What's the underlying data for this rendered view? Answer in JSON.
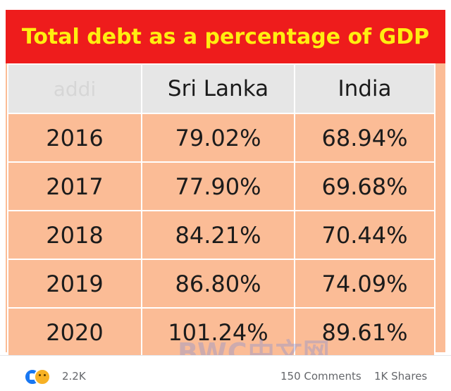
{
  "table": {
    "title": "Total debt as a percentage of GDP",
    "header": {
      "corner": "addi",
      "col1": "Sri Lanka",
      "col2": "India"
    },
    "rows": [
      {
        "year": "2016",
        "sri_lanka": "79.02%",
        "india": "68.94%"
      },
      {
        "year": "2017",
        "sri_lanka": "77.90%",
        "india": "69.68%"
      },
      {
        "year": "2018",
        "sri_lanka": "84.21%",
        "india": "70.44%"
      },
      {
        "year": "2019",
        "sri_lanka": "86.80%",
        "india": "74.09%"
      },
      {
        "year": "2020",
        "sri_lanka": "101.24%",
        "india": "89.61%"
      }
    ]
  },
  "watermark": "BWC中文网",
  "footer": {
    "reaction_count": "2.2K",
    "reaction_icons": [
      "like-icon",
      "sad-icon"
    ],
    "comments": "150 Comments",
    "shares": "1K Shares"
  },
  "colors": {
    "title_bg": "#ee1c1c",
    "title_text": "#ffee10",
    "header_bg": "#e6e6e6",
    "cell_bg": "#fbbc96"
  }
}
